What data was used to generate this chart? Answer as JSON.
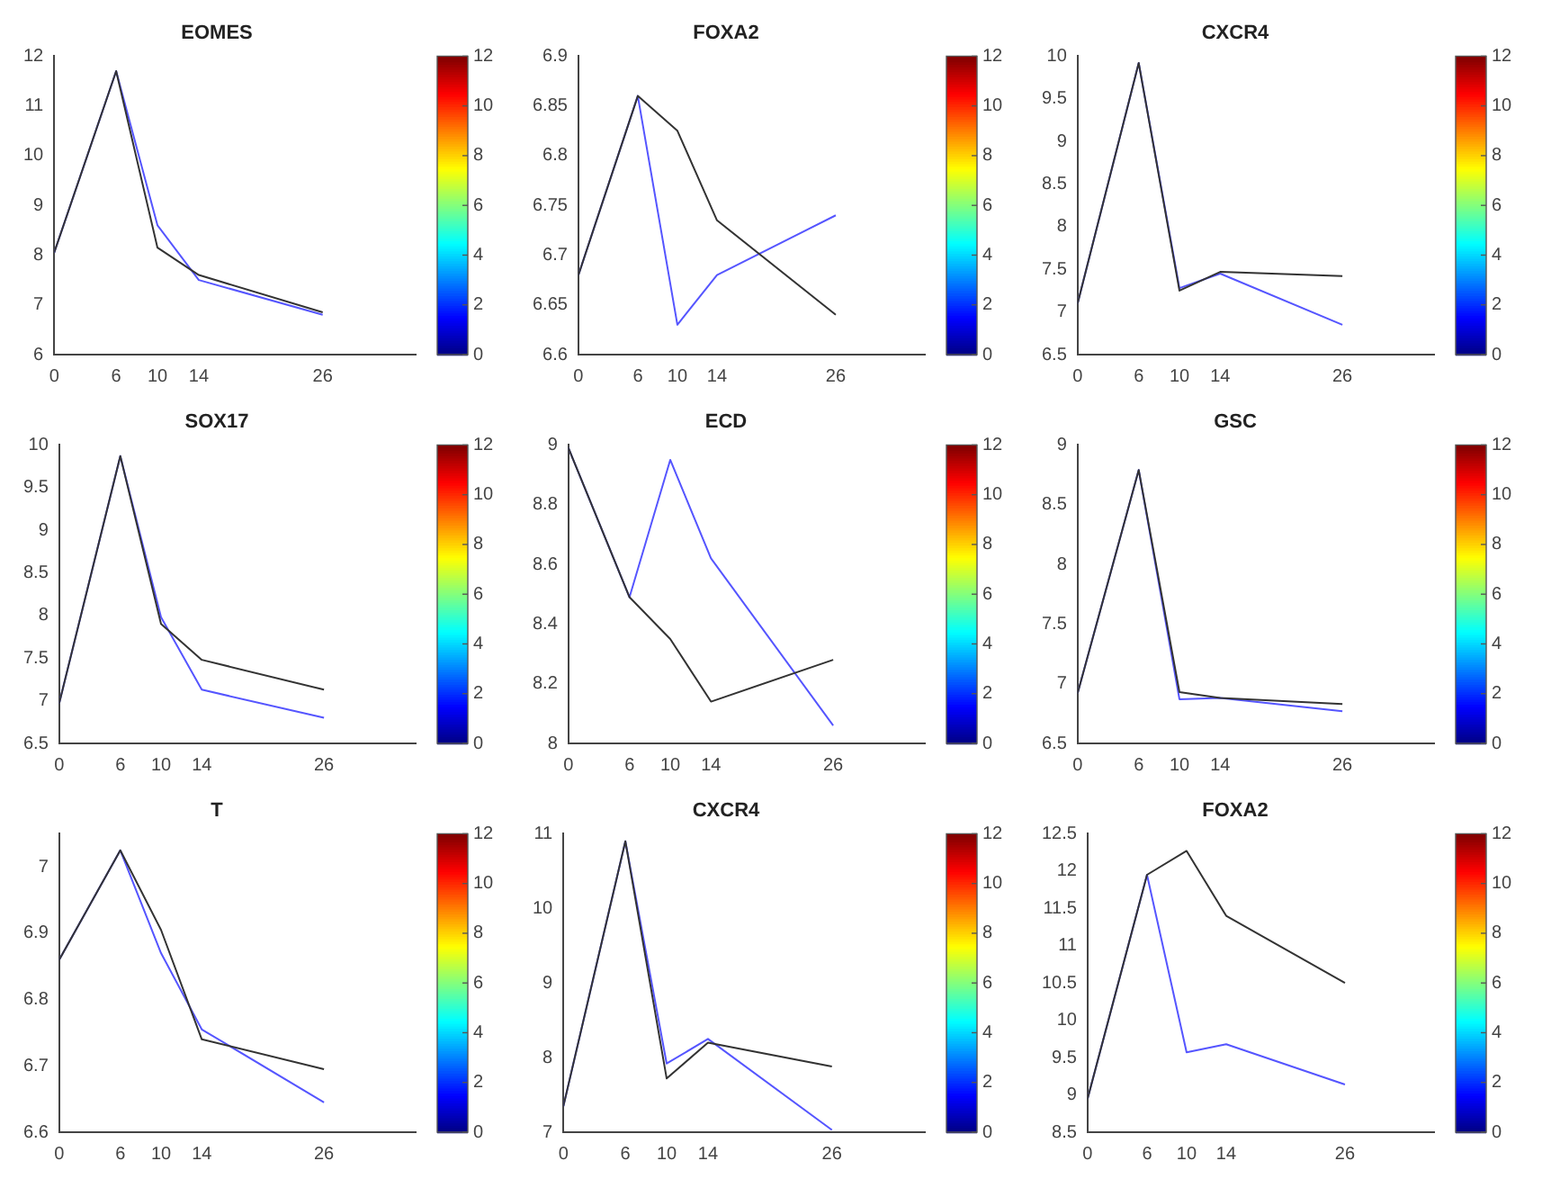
{
  "chart_data": [
    {
      "type": "line",
      "title": "EOMES",
      "x": [
        0,
        6,
        10,
        14,
        26
      ],
      "xlim": [
        0,
        35
      ],
      "xticks": [
        0,
        6,
        10,
        14,
        26
      ],
      "ylim": [
        6,
        12
      ],
      "yticks": [
        6,
        7,
        8,
        9,
        10,
        11,
        12
      ],
      "grid": false,
      "legend": false,
      "marker": "none",
      "clim": [
        0,
        12
      ],
      "cticks": [
        0,
        2,
        4,
        6,
        8,
        10,
        12
      ],
      "series": [
        {
          "color": "#333333",
          "values": [
            8.05,
            11.7,
            8.15,
            7.6,
            6.85
          ]
        },
        {
          "color": "#5555ff",
          "values": [
            8.05,
            11.7,
            8.6,
            7.5,
            6.8
          ]
        }
      ]
    },
    {
      "type": "line",
      "title": "FOXA2",
      "x": [
        0,
        6,
        10,
        14,
        26
      ],
      "xlim": [
        0,
        35
      ],
      "xticks": [
        0,
        6,
        10,
        14,
        26
      ],
      "ylim": [
        6.6,
        6.9
      ],
      "yticks": [
        6.6,
        6.65,
        6.7,
        6.75,
        6.8,
        6.85,
        6.9
      ],
      "grid": false,
      "legend": false,
      "marker": "none",
      "clim": [
        0,
        12
      ],
      "cticks": [
        0,
        2,
        4,
        6,
        8,
        10,
        12
      ],
      "series": [
        {
          "color": "#333333",
          "values": [
            6.68,
            6.86,
            6.825,
            6.735,
            6.64
          ]
        },
        {
          "color": "#5555ff",
          "values": [
            6.68,
            6.86,
            6.63,
            6.68,
            6.74
          ]
        }
      ]
    },
    {
      "type": "line",
      "title": "CXCR4",
      "x": [
        0,
        6,
        10,
        14,
        26
      ],
      "xlim": [
        0,
        35
      ],
      "xticks": [
        0,
        6,
        10,
        14,
        26
      ],
      "ylim": [
        6.5,
        10
      ],
      "yticks": [
        6.5,
        7,
        7.5,
        8,
        8.5,
        9,
        9.5,
        10
      ],
      "grid": false,
      "legend": false,
      "marker": "none",
      "clim": [
        0,
        12
      ],
      "cticks": [
        0,
        2,
        4,
        6,
        8,
        10,
        12
      ],
      "series": [
        {
          "color": "#333333",
          "values": [
            7.1,
            9.92,
            7.25,
            7.47,
            7.42
          ]
        },
        {
          "color": "#5555ff",
          "values": [
            7.1,
            9.92,
            7.28,
            7.45,
            6.85
          ]
        }
      ]
    },
    {
      "type": "line",
      "title": "SOX17",
      "x": [
        0,
        6,
        10,
        14,
        26
      ],
      "xlim": [
        0,
        35
      ],
      "xticks": [
        0,
        6,
        10,
        14,
        26
      ],
      "ylim": [
        6.5,
        10
      ],
      "yticks": [
        6.5,
        7,
        7.5,
        8,
        8.5,
        9,
        9.5,
        10
      ],
      "grid": false,
      "legend": false,
      "marker": "none",
      "clim": [
        0,
        12
      ],
      "cticks": [
        0,
        2,
        4,
        6,
        8,
        10,
        12
      ],
      "series": [
        {
          "color": "#333333",
          "values": [
            6.97,
            9.87,
            7.9,
            7.48,
            7.13
          ]
        },
        {
          "color": "#5555ff",
          "values": [
            6.97,
            9.87,
            7.98,
            7.13,
            6.8
          ]
        }
      ]
    },
    {
      "type": "line",
      "title": "ECD",
      "x": [
        0,
        6,
        10,
        14,
        26
      ],
      "xlim": [
        0,
        35
      ],
      "xticks": [
        0,
        6,
        10,
        14,
        26
      ],
      "ylim": [
        8,
        9
      ],
      "yticks": [
        8,
        8.2,
        8.4,
        8.6,
        8.8,
        9
      ],
      "grid": false,
      "legend": false,
      "marker": "none",
      "clim": [
        0,
        12
      ],
      "cticks": [
        0,
        2,
        4,
        6,
        8,
        10,
        12
      ],
      "series": [
        {
          "color": "#333333",
          "values": [
            8.99,
            8.49,
            8.35,
            8.14,
            8.28
          ]
        },
        {
          "color": "#5555ff",
          "values": [
            8.99,
            8.49,
            8.95,
            8.62,
            8.06
          ]
        }
      ]
    },
    {
      "type": "line",
      "title": "GSC",
      "x": [
        0,
        6,
        10,
        14,
        26
      ],
      "xlim": [
        0,
        35
      ],
      "xticks": [
        0,
        6,
        10,
        14,
        26
      ],
      "ylim": [
        6.5,
        9
      ],
      "yticks": [
        6.5,
        7,
        7.5,
        8,
        8.5,
        9
      ],
      "grid": false,
      "legend": false,
      "marker": "none",
      "clim": [
        0,
        12
      ],
      "cticks": [
        0,
        2,
        4,
        6,
        8,
        10,
        12
      ],
      "series": [
        {
          "color": "#333333",
          "values": [
            6.92,
            8.79,
            6.93,
            6.88,
            6.83
          ]
        },
        {
          "color": "#5555ff",
          "values": [
            6.92,
            8.79,
            6.87,
            6.88,
            6.77
          ]
        }
      ]
    },
    {
      "type": "line",
      "title": "T",
      "x": [
        0,
        6,
        10,
        14,
        26
      ],
      "xlim": [
        0,
        35
      ],
      "xticks": [
        0,
        6,
        10,
        14,
        26
      ],
      "ylim": [
        6.6,
        7.05
      ],
      "yticks": [
        6.6,
        6.7,
        6.8,
        6.9,
        7
      ],
      "grid": false,
      "legend": false,
      "marker": "none",
      "clim": [
        0,
        12
      ],
      "cticks": [
        0,
        2,
        4,
        6,
        8,
        10,
        12
      ],
      "series": [
        {
          "color": "#333333",
          "values": [
            6.86,
            7.025,
            6.905,
            6.74,
            6.695
          ]
        },
        {
          "color": "#5555ff",
          "values": [
            6.86,
            7.025,
            6.87,
            6.755,
            6.645
          ]
        }
      ]
    },
    {
      "type": "line",
      "title": "CXCR4",
      "x": [
        0,
        6,
        10,
        14,
        26
      ],
      "xlim": [
        0,
        35
      ],
      "xticks": [
        0,
        6,
        10,
        14,
        26
      ],
      "ylim": [
        7,
        11
      ],
      "yticks": [
        7,
        8,
        9,
        10,
        11
      ],
      "grid": false,
      "legend": false,
      "marker": "none",
      "clim": [
        0,
        12
      ],
      "cticks": [
        0,
        2,
        4,
        6,
        8,
        10,
        12
      ],
      "series": [
        {
          "color": "#333333",
          "values": [
            7.35,
            10.9,
            7.72,
            8.2,
            7.88
          ]
        },
        {
          "color": "#5555ff",
          "values": [
            7.35,
            10.9,
            7.92,
            8.25,
            7.03
          ]
        }
      ]
    },
    {
      "type": "line",
      "title": "FOXA2",
      "x": [
        0,
        6,
        10,
        14,
        26
      ],
      "xlim": [
        0,
        35
      ],
      "xticks": [
        0,
        6,
        10,
        14,
        26
      ],
      "ylim": [
        8.5,
        12.5
      ],
      "yticks": [
        8.5,
        9,
        9.5,
        10,
        10.5,
        11,
        11.5,
        12,
        12.5
      ],
      "grid": false,
      "legend": false,
      "marker": "none",
      "clim": [
        0,
        12
      ],
      "cticks": [
        0,
        2,
        4,
        6,
        8,
        10,
        12
      ],
      "series": [
        {
          "color": "#333333",
          "values": [
            8.95,
            11.95,
            12.27,
            11.4,
            10.5
          ]
        },
        {
          "color": "#5555ff",
          "values": [
            8.95,
            11.95,
            9.57,
            9.68,
            9.14
          ]
        }
      ]
    }
  ]
}
